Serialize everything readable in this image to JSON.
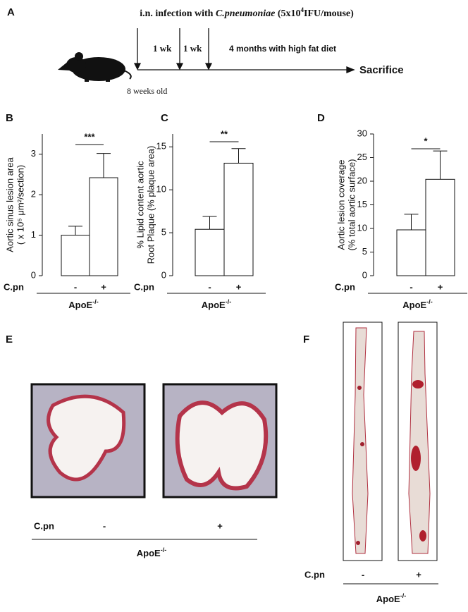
{
  "panel_labels": [
    "A",
    "B",
    "C",
    "D",
    "E",
    "F"
  ],
  "panel_a": {
    "title": [
      "i.n. infection with ",
      "C.pneumoniae",
      " (5x10",
      "4",
      "IFU/mouse)"
    ],
    "steps": [
      "1 wk",
      "1 wk"
    ],
    "diet": "4 months with high fat diet",
    "end": "Sacrifice",
    "age": "8 weeks old"
  },
  "chart_data": [
    {
      "type": "bar",
      "y_label": [
        "Aortic sinus lesion area",
        "( x 10⁵ μm²/section)"
      ],
      "categories": [
        "-",
        "+"
      ],
      "group_label": "C.pn",
      "genotype": {
        "base": "ApoE",
        "sup": "-/-"
      },
      "values": [
        1.0,
        2.42
      ],
      "errors": [
        0.22,
        0.6
      ],
      "significance": "***",
      "ylim": [
        0,
        3.5
      ],
      "yticks": [
        0,
        1,
        2,
        3
      ],
      "color": "#ffffff"
    },
    {
      "type": "bar",
      "y_label": [
        "% Lipid content aortic",
        "Root Plaque  (% plaque area)"
      ],
      "categories": [
        "-",
        "+"
      ],
      "group_label": "C.pn",
      "genotype": {
        "base": "ApoE",
        "sup": "-/-"
      },
      "values": [
        5.4,
        13.1
      ],
      "errors": [
        1.5,
        1.7
      ],
      "significance": "**",
      "ylim": [
        0,
        16.5
      ],
      "yticks": [
        0,
        5,
        10,
        15
      ],
      "color": "#ffffff"
    },
    {
      "type": "bar",
      "y_label": [
        "Aortic lesion coverage",
        "(% total aortic surface)"
      ],
      "categories": [
        "-",
        "+"
      ],
      "group_label": "C.pn",
      "genotype": {
        "base": "ApoE",
        "sup": "-/-"
      },
      "values": [
        9.7,
        20.4
      ],
      "errors": [
        3.3,
        6.0
      ],
      "significance": "*",
      "ylim": [
        0,
        30
      ],
      "yticks": [
        0,
        5,
        10,
        15,
        20,
        25,
        30
      ],
      "color": "#ffffff"
    }
  ],
  "panel_e": {
    "group_label": "C.pn",
    "categories": [
      "-",
      "+"
    ],
    "genotype": {
      "base": "ApoE",
      "sup": "-/-"
    }
  },
  "panel_f": {
    "group_label": "C.pn",
    "categories": [
      "-",
      "+"
    ],
    "genotype": {
      "base": "ApoE",
      "sup": "-/-"
    }
  }
}
